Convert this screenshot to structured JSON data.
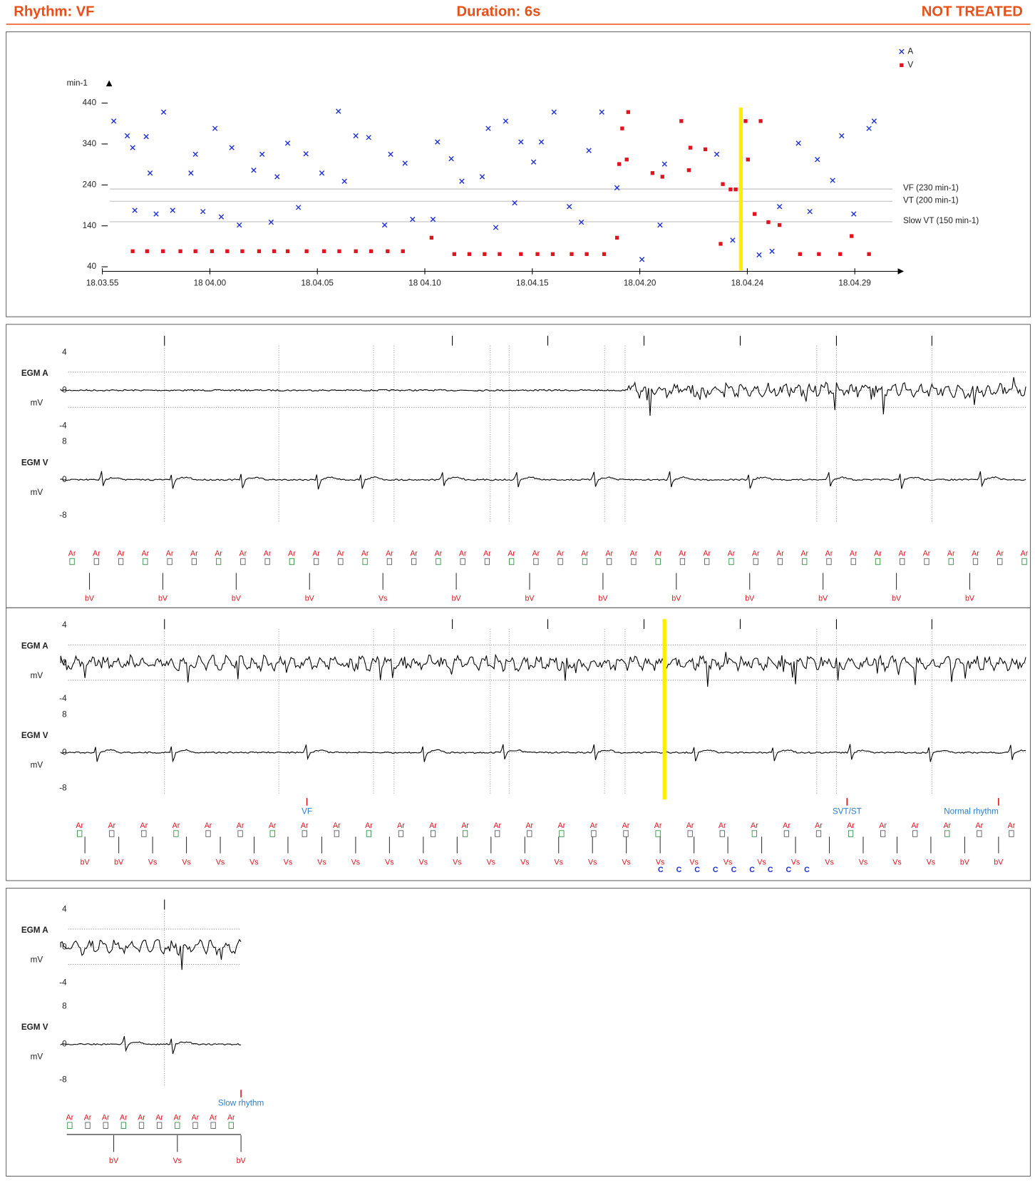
{
  "header": {
    "rhythm": "Rhythm: VF",
    "duration": "Duration: 6s",
    "status": "NOT TREATED"
  },
  "chart_data": {
    "type": "scatter",
    "ylabel": "min-1",
    "xlim": [
      0,
      37
    ],
    "ylim": [
      40,
      440
    ],
    "yticks": [
      40,
      140,
      240,
      340,
      440
    ],
    "xticks": [
      {
        "value": 0,
        "label": "18.03.55"
      },
      {
        "value": 5,
        "label": "18 04.00"
      },
      {
        "value": 10,
        "label": "18.04.05"
      },
      {
        "value": 15,
        "label": "18 04.10"
      },
      {
        "value": 20,
        "label": "18.04.15"
      },
      {
        "value": 25,
        "label": "18.04.20"
      },
      {
        "value": 30,
        "label": "18.04.24"
      },
      {
        "value": 35,
        "label": "18.04.29"
      }
    ],
    "legend": "top-right",
    "marker_x": 29.7,
    "reference_lines": [
      {
        "label": "VF (230 min-1)",
        "value": 230
      },
      {
        "label": "VT (200 min-1)",
        "value": 200
      },
      {
        "label": "Slow VT (150 min-1)",
        "value": 150
      }
    ],
    "series": [
      {
        "name": "A",
        "color": "#1f2fd8",
        "marker": "x",
        "x": [
          0.53,
          1.16,
          1.41,
          1.51,
          2.04,
          2.22,
          2.5,
          2.85,
          3.27,
          4.12,
          4.33,
          4.68,
          5.24,
          5.53,
          6.02,
          6.37,
          7.04,
          7.43,
          7.85,
          8.13,
          8.62,
          9.12,
          9.47,
          10.21,
          10.98,
          11.26,
          11.79,
          12.39,
          13.13,
          13.41,
          14.08,
          14.43,
          15.38,
          15.59,
          16.23,
          16.72,
          17.67,
          17.95,
          18.3,
          18.76,
          19.18,
          19.47,
          20.06,
          20.42,
          21.01,
          21.72,
          22.28,
          22.63,
          23.23,
          23.94,
          25.1,
          25.94,
          26.15,
          28.58,
          29.32,
          30.55,
          31.15,
          31.5,
          32.38,
          32.91,
          33.26,
          33.97,
          34.39,
          34.95,
          35.66,
          35.9
        ],
        "values": [
          396,
          360,
          331,
          178,
          358,
          269,
          169,
          418,
          178,
          269,
          315,
          175,
          378,
          162,
          331,
          142,
          276,
          315,
          149,
          260,
          342,
          185,
          316,
          269,
          420,
          249,
          360,
          356,
          142,
          315,
          293,
          156,
          156,
          345,
          304,
          249,
          260,
          378,
          136,
          396,
          196,
          345,
          296,
          345,
          418,
          187,
          149,
          324,
          418,
          233,
          58,
          142,
          291,
          315,
          105,
          69,
          78,
          187,
          342,
          175,
          302,
          251,
          360,
          169,
          378,
          396
        ]
      },
      {
        "name": "V",
        "color": "#e0141e",
        "marker": "square",
        "x": [
          1.41,
          2.08,
          2.82,
          3.63,
          4.33,
          5.1,
          5.81,
          6.51,
          7.29,
          7.99,
          8.62,
          9.5,
          10.31,
          11.02,
          11.79,
          12.5,
          13.27,
          13.98,
          15.31,
          16.37,
          17.07,
          17.78,
          18.48,
          19.47,
          20.24,
          20.95,
          21.83,
          22.53,
          23.34,
          23.94,
          24.04,
          24.18,
          24.39,
          24.46,
          25.59,
          26.05,
          26.93,
          27.28,
          27.35,
          28.05,
          28.76,
          28.86,
          29.22,
          29.46,
          29.92,
          30.03,
          30.34,
          30.62,
          30.98,
          31.5,
          32.45,
          33.33,
          34.32,
          34.85,
          35.66
        ],
        "values": [
          78,
          78,
          78,
          78,
          78,
          78,
          78,
          78,
          78,
          78,
          78,
          78,
          78,
          78,
          78,
          78,
          78,
          78,
          111,
          71,
          71,
          71,
          71,
          71,
          71,
          71,
          71,
          71,
          71,
          111,
          291,
          378,
          302,
          418,
          269,
          260,
          396,
          276,
          331,
          327,
          96,
          242,
          229,
          229,
          396,
          302,
          169,
          396,
          149,
          142,
          71,
          71,
          71,
          115,
          71
        ]
      }
    ]
  },
  "egm_panels": [
    {
      "channels": [
        {
          "name": "EGM A",
          "unit": "mV",
          "ticks": [
            "4",
            "0",
            "-4"
          ]
        },
        {
          "name": "EGM V",
          "unit": "mV",
          "ticks": [
            "8",
            "0",
            "-8"
          ]
        }
      ],
      "atrial_markers": [
        "Ar",
        "Ar",
        "Ar",
        "Ar",
        "Ar",
        "Ar",
        "Ar",
        "Ar",
        "Ar",
        "Ar",
        "Ar",
        "Ar",
        "Ar",
        "Ar",
        "Ar",
        "Ar",
        "Ar",
        "Ar",
        "Ar",
        "Ar",
        "Ar",
        "Ar",
        "Ar",
        "Ar",
        "Ar",
        "Ar",
        "Ar",
        "Ar",
        "Ar",
        "Ar",
        "Ar",
        "Ar",
        "Ar",
        "Ar",
        "Ar",
        "Ar",
        "Ar",
        "Ar",
        "Ar",
        "Ar"
      ],
      "ventricular_markers": [
        "bV",
        "bV",
        "bV",
        "bV",
        "Vs",
        "bV",
        "bV",
        "bV",
        "bV",
        "bV",
        "bV",
        "bV",
        "bV"
      ],
      "annotations": []
    },
    {
      "channels": [
        {
          "name": "EGM A",
          "unit": "mV",
          "ticks": [
            "4",
            "0",
            "-4"
          ]
        },
        {
          "name": "EGM V",
          "unit": "mV",
          "ticks": [
            "8",
            "0",
            "-8"
          ]
        }
      ],
      "atrial_markers": [
        "Ar",
        "Ar",
        "Ar",
        "Ar",
        "Ar",
        "Ar",
        "Ar",
        "Ar",
        "Ar",
        "Ar",
        "Ar",
        "Ar",
        "Ar",
        "Ar",
        "Ar",
        "Ar",
        "Ar",
        "Ar",
        "Ar",
        "Ar",
        "Ar",
        "Ar",
        "Ar",
        "Ar",
        "Ar",
        "Ar",
        "Ar",
        "Ar",
        "Ar",
        "Ar"
      ],
      "ventricular_markers": [
        "bV",
        "bV",
        "Vs",
        "Vs",
        "Vs",
        "Vs",
        "Vs",
        "Vs",
        "Vs",
        "Vs",
        "Vs",
        "Vs",
        "Vs",
        "Vs",
        "Vs",
        "Vs",
        "Vs",
        "Vs",
        "Vs",
        "Vs",
        "Vs",
        "Vs",
        "Vs",
        "Vs",
        "Vs",
        "Vs",
        "bV",
        "bV"
      ],
      "capture_markers": [
        "C",
        "C",
        "C",
        "C",
        "C",
        "C",
        "C",
        "C",
        "C"
      ],
      "annotations": [
        "VF",
        "SVT/ST",
        "Normal rhythm"
      ]
    },
    {
      "channels": [
        {
          "name": "EGM A",
          "unit": "mV",
          "ticks": [
            "4",
            "0",
            "-4"
          ]
        },
        {
          "name": "EGM V",
          "unit": "mV",
          "ticks": [
            "8",
            "0",
            "-8"
          ]
        }
      ],
      "atrial_markers": [
        "Ar",
        "Ar",
        "Ar",
        "Ar",
        "Ar",
        "Ar",
        "Ar",
        "Ar",
        "Ar",
        "Ar"
      ],
      "ventricular_markers": [
        "bV",
        "Vs",
        "bV"
      ],
      "annotations": [
        "Slow rhythm"
      ]
    }
  ]
}
